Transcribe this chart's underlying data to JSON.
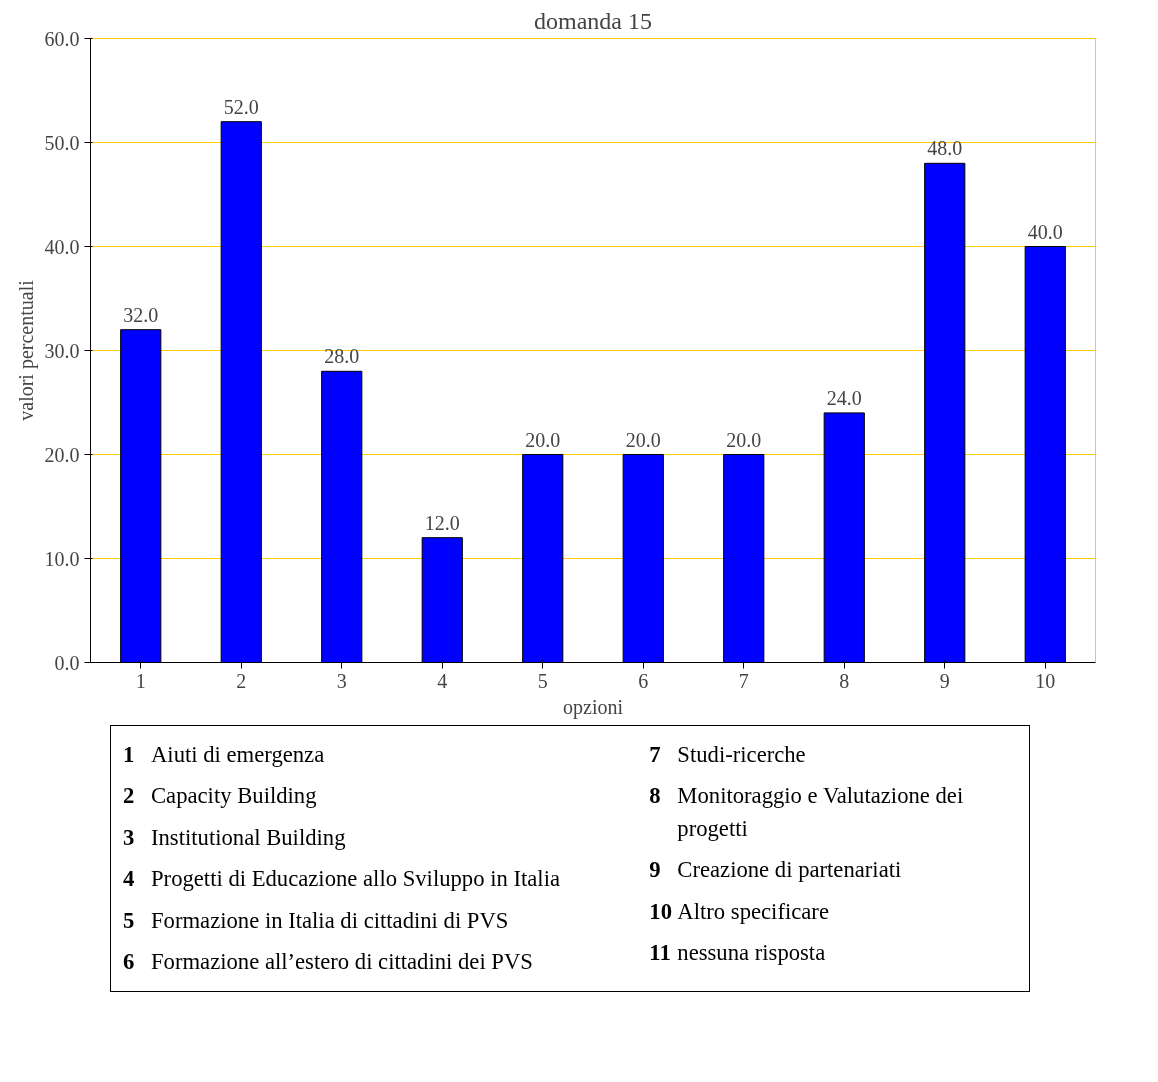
{
  "chart_data": {
    "type": "bar",
    "title": "domanda 15",
    "xlabel": "opzioni",
    "ylabel": "valori percentuali",
    "categories": [
      "1",
      "2",
      "3",
      "4",
      "5",
      "6",
      "7",
      "8",
      "9",
      "10"
    ],
    "values": [
      32.0,
      52.0,
      28.0,
      12.0,
      20.0,
      20.0,
      20.0,
      24.0,
      48.0,
      40.0
    ],
    "value_labels": [
      "32.0",
      "52.0",
      "28.0",
      "12.0",
      "20.0",
      "20.0",
      "20.0",
      "24.0",
      "48.0",
      "40.0"
    ],
    "color": "#0000ff",
    "grid": "y",
    "ylim": [
      0,
      60
    ],
    "yticks": [
      {
        "value": 0,
        "label": "0.0"
      },
      {
        "value": 10,
        "label": "10.0"
      },
      {
        "value": 20,
        "label": "20.0"
      },
      {
        "value": 30,
        "label": "30.0"
      },
      {
        "value": 40,
        "label": "40.0"
      },
      {
        "value": 50,
        "label": "50.0"
      },
      {
        "value": 60,
        "label": "60.0"
      }
    ],
    "annotations": [
      "1 Aiuti di emergenza",
      "2 Capacity Building",
      "3 Institutional Building",
      "4 Progetti di Educazione allo  Sviluppo in Italia",
      "5 Formazione in Italia di cittadini di  PVS",
      "6 Formazione all’estero di cittadini dei PVS",
      "7 Studi-ricerche",
      "8 Monitoraggio e Valutazione dei progetti",
      "9 Creazione di  partenariati",
      "10 Altro specificare",
      "11  nessuna  risposta"
    ]
  }
}
